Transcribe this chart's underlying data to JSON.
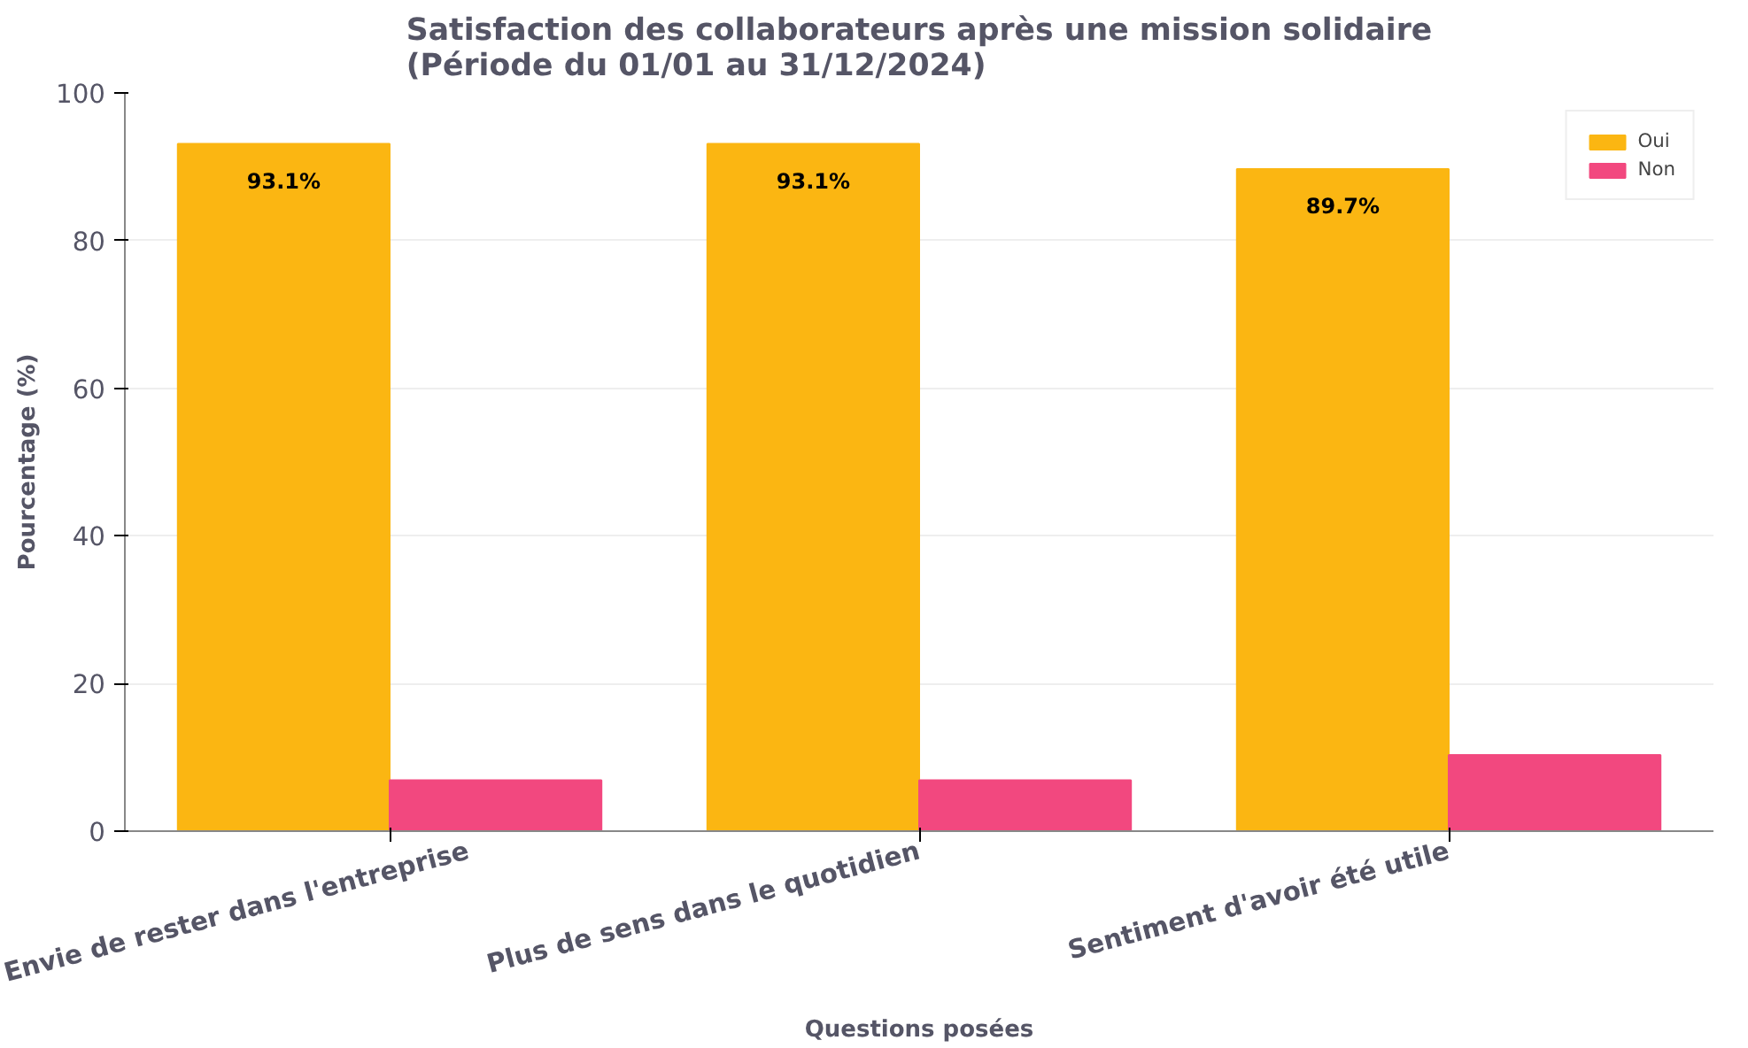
{
  "chart_data": {
    "type": "bar",
    "title": "Satisfaction des collaborateurs après une mission solidaire\n(Période du 01/01 au 31/12/2024)",
    "xlabel": "Questions posées",
    "ylabel": "Pourcentage (%)",
    "categories": [
      "Envie de rester dans l'entreprise",
      "Plus de sens dans le quotidien",
      "Sentiment d'avoir été utile"
    ],
    "series": [
      {
        "name": "Oui",
        "color": "#fbb612",
        "values": [
          93.1,
          93.1,
          89.7
        ],
        "value_labels": [
          "93.1%",
          "93.1%",
          "89.7%"
        ]
      },
      {
        "name": "Non",
        "color": "#f2487f",
        "values": [
          6.9,
          6.9,
          10.3
        ]
      }
    ],
    "ylim": [
      0,
      100
    ],
    "yticks": [
      0,
      20,
      40,
      60,
      80,
      100
    ],
    "grid": "y",
    "legend": "top right"
  }
}
